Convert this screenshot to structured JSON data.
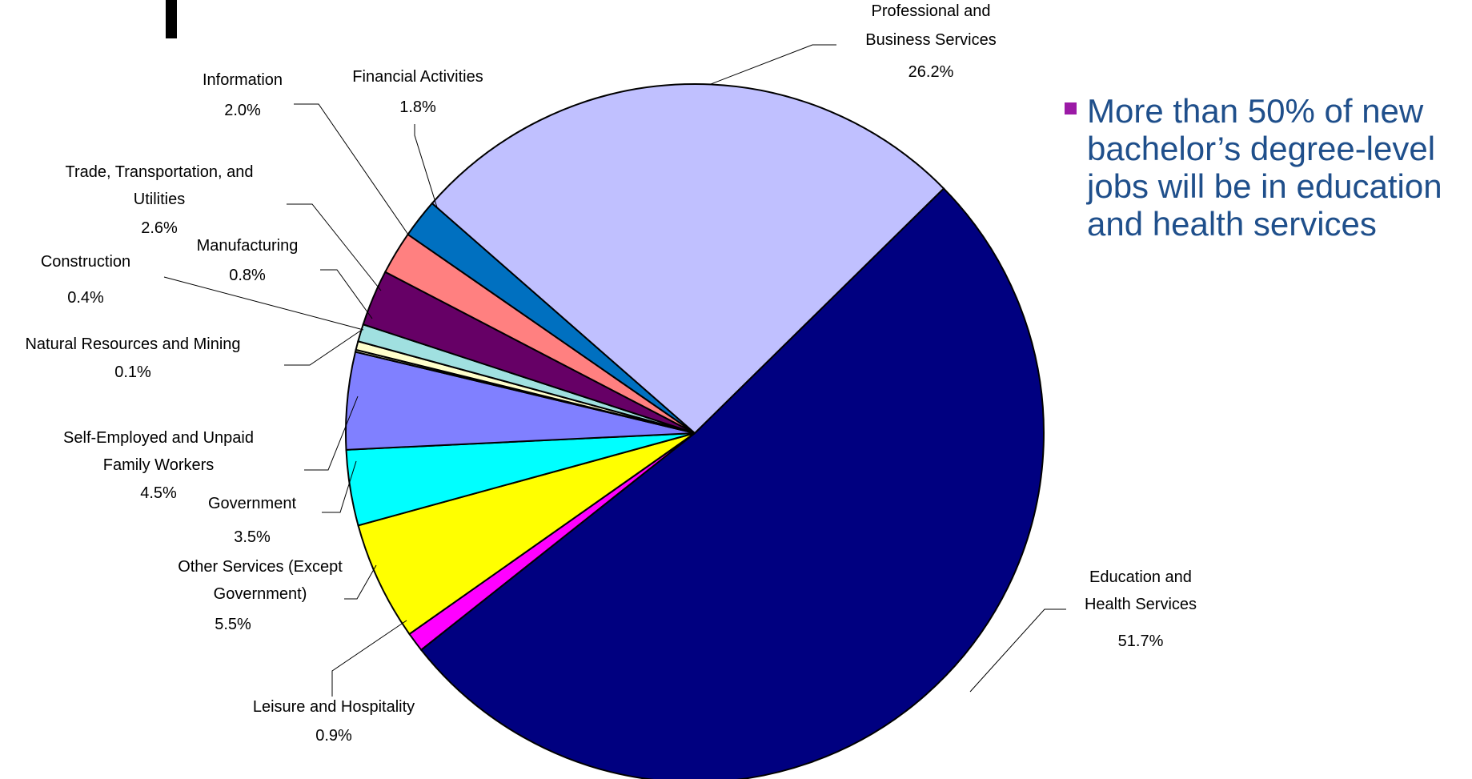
{
  "bullet": {
    "text": "More than 50% of new bachelor’s degree-level jobs will be in education and health services",
    "marker_color": "#9b1aa6",
    "text_color": "#1f4f8b"
  },
  "chart_data": {
    "type": "pie",
    "title": "",
    "start": "Education and Health Services",
    "slices": [
      {
        "label": "Education and Health Services",
        "value": 51.7,
        "display": "51.7%",
        "color": "#000080"
      },
      {
        "label": "Leisure and Hospitality",
        "value": 0.9,
        "display": "0.9%",
        "color": "#ff00ff"
      },
      {
        "label": "Other Services (Except Government)",
        "value": 5.5,
        "display": "5.5%",
        "color": "#ffff00"
      },
      {
        "label": "Government",
        "value": 3.5,
        "display": "3.5%",
        "color": "#00ffff"
      },
      {
        "label": "Self-Employed and Unpaid Family Workers",
        "value": 4.5,
        "display": "4.5%",
        "color": "#8080ff"
      },
      {
        "label": "Natural Resources and Mining",
        "value": 0.1,
        "display": "0.1%",
        "color": "#ffffcc"
      },
      {
        "label": "Construction",
        "value": 0.4,
        "display": "0.4%",
        "color": "#ffffcc"
      },
      {
        "label": "Manufacturing",
        "value": 0.8,
        "display": "0.8%",
        "color": "#a0e0e0"
      },
      {
        "label": "Trade, Transportation, and Utilities",
        "value": 2.6,
        "display": "2.6%",
        "color": "#660066"
      },
      {
        "label": "Information",
        "value": 2.0,
        "display": "2.0%",
        "color": "#ff8080"
      },
      {
        "label": "Financial Activities",
        "value": 1.8,
        "display": "1.8%",
        "color": "#0070c0"
      },
      {
        "label": "Professional and Business Services",
        "value": 26.2,
        "display": "26.2%",
        "color": "#c0c0ff"
      }
    ]
  }
}
